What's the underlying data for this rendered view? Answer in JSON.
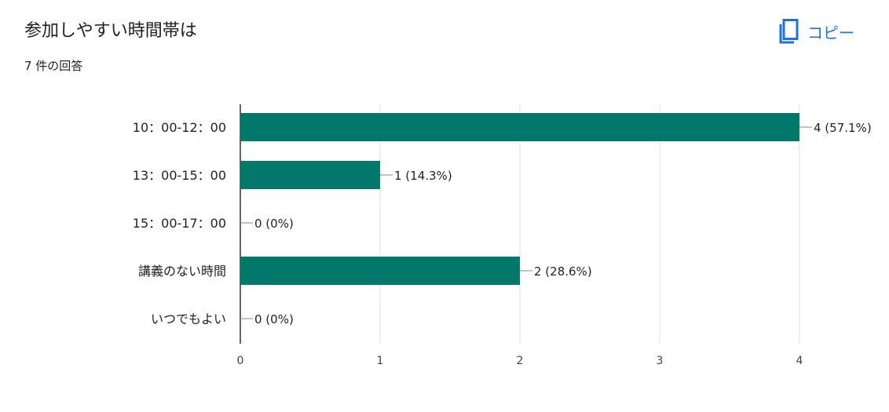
{
  "header": {
    "title": "参加しやすい時間帯は",
    "response_count": "7 件の回答",
    "copy_label": "コピー"
  },
  "icons": {
    "copy": "copy-icon"
  },
  "colors": {
    "bar": "#00796b",
    "accent": "#1a73e8",
    "grid": "#e0e0e0",
    "axis": "#333333"
  },
  "chart_data": {
    "type": "bar",
    "orientation": "horizontal",
    "categories": [
      "10：00-12：00",
      "13：00-15：00",
      "15：00-17：00",
      "講義のない時間",
      "いつでもよい"
    ],
    "values": [
      4,
      1,
      0,
      2,
      0
    ],
    "data_labels": [
      "4 (57.1%)",
      "1 (14.3%)",
      "0 (0%)",
      "2 (28.6%)",
      "0 (0%)"
    ],
    "xlim": [
      0,
      4
    ],
    "x_ticks": [
      0,
      1,
      2,
      3,
      4
    ],
    "grid": true,
    "legend": "none"
  }
}
